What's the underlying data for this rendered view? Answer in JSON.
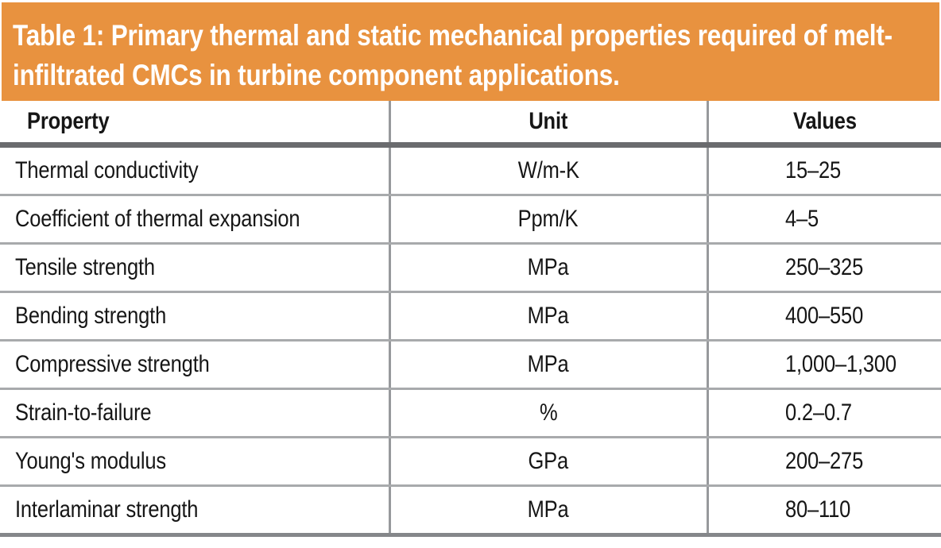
{
  "caption": {
    "line1": "Table 1: Primary thermal and static mechanical properties required of melt-",
    "line2": "infiltrated CMCs in turbine component applications.",
    "full_text": "Table 1: Primary thermal and static mechanical properties required of melt-infiltrated CMCs in turbine component applications."
  },
  "table": {
    "headers": [
      "Property",
      "Unit",
      "Values"
    ],
    "rows": [
      {
        "property": "Thermal conductivity",
        "unit": "W/m-K",
        "values": "15–25"
      },
      {
        "property": "Coefficient of thermal expansion",
        "unit": "Ppm/K",
        "values": "4–5"
      },
      {
        "property": "Tensile strength",
        "unit": "MPa",
        "values": "250–325"
      },
      {
        "property": "Bending strength",
        "unit": "MPa",
        "values": "400–550"
      },
      {
        "property": "Compressive strength",
        "unit": "MPa",
        "values": "1,000–1,300"
      },
      {
        "property": "Strain-to-failure",
        "unit": "%",
        "values": "0.2–0.7"
      },
      {
        "property": "Young's modulus",
        "unit": "GPa",
        "values": "200–275"
      },
      {
        "property": "Interlaminar strength",
        "unit": "MPa",
        "values": "80–110"
      }
    ]
  },
  "colors": {
    "caption_bg": "#E8923F",
    "caption_text": "#FFFFFF",
    "body_text": "#161616",
    "header_rule": "#6A6B6E",
    "row_rule": "#A8AAAC",
    "column_rule": "#97999C",
    "bottom_rule": "#85878A"
  },
  "chart_data": {
    "type": "table",
    "title": "Table 1: Primary thermal and static mechanical properties required of melt-infiltrated CMCs in turbine component applications.",
    "columns": [
      "Property",
      "Unit",
      "Values"
    ],
    "rows": [
      [
        "Thermal conductivity",
        "W/m-K",
        "15–25"
      ],
      [
        "Coefficient of thermal expansion",
        "Ppm/K",
        "4–5"
      ],
      [
        "Tensile strength",
        "MPa",
        "250–325"
      ],
      [
        "Bending strength",
        "MPa",
        "400–550"
      ],
      [
        "Compressive strength",
        "MPa",
        "1,000–1,300"
      ],
      [
        "Strain-to-failure",
        "%",
        "0.2–0.7"
      ],
      [
        "Young's modulus",
        "GPa",
        "200–275"
      ],
      [
        "Interlaminar strength",
        "MPa",
        "80–110"
      ]
    ]
  }
}
